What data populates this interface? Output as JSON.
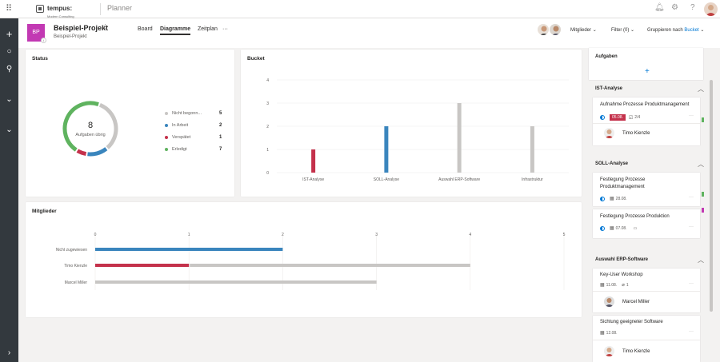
{
  "topbar": {
    "app_name": "Planner",
    "logo_brand": "tempus:",
    "logo_tagline": "Modern Consulting"
  },
  "header": {
    "project_initials": "BP",
    "project_title": "Beispiel-Projekt",
    "project_subtitle": "Beispiel-Projekt",
    "tabs": [
      {
        "label": "Board"
      },
      {
        "label": "Diagramme"
      },
      {
        "label": "Zeitplan"
      }
    ],
    "more": "···",
    "members": "Mitglieder",
    "filter": "Filter (0)",
    "group_prefix": "Gruppieren nach",
    "group_value": "Bucket"
  },
  "status": {
    "title": "Status",
    "center_number": "8",
    "center_label": "Aufgaben übrig",
    "legend": [
      {
        "label": "Nicht begonn...",
        "count": "5",
        "color": "#c8c6c4"
      },
      {
        "label": "In Arbeit",
        "count": "2",
        "color": "#3a85bd"
      },
      {
        "label": "Verspätet",
        "count": "1",
        "color": "#c4314b"
      },
      {
        "label": "Erledigt",
        "count": "7",
        "color": "#5fb35f"
      }
    ]
  },
  "bucket_chart": {
    "title": "Bucket"
  },
  "members_chart": {
    "title": "Mitglieder"
  },
  "chart_data": [
    {
      "type": "bar",
      "title": "Bucket",
      "categories": [
        "IST-Analyse",
        "SOLL-Analyse",
        "Auswahl ERP-Software",
        "Infrastruktur"
      ],
      "series": [
        {
          "values": [
            1,
            0,
            0,
            0
          ],
          "color": "#c4314b"
        },
        {
          "values": [
            0,
            2,
            0,
            0
          ],
          "color": "#3a85bd"
        },
        {
          "values": [
            0,
            0,
            3,
            2
          ],
          "color": "#c8c6c4"
        }
      ],
      "yticks": [
        "0",
        "1",
        "2",
        "3",
        "4"
      ],
      "ylim": [
        0,
        4
      ]
    },
    {
      "type": "bar",
      "orientation": "horizontal",
      "title": "Mitglieder",
      "categories": [
        "Nicht zugewiesen",
        "Timo Kienzle",
        "Marcel Miller"
      ],
      "series": [
        {
          "values": [
            2,
            0,
            0
          ],
          "color": "#3a85bd"
        },
        {
          "values": [
            0,
            1,
            0
          ],
          "color": "#c4314b"
        },
        {
          "values": [
            0,
            3,
            3
          ],
          "color": "#c8c6c4"
        }
      ],
      "xticks": [
        "0",
        "1",
        "2",
        "3",
        "4",
        "5"
      ],
      "xlim": [
        0,
        5
      ]
    }
  ],
  "tasks_panel": {
    "title": "Aufgaben",
    "add": "+",
    "sections": [
      {
        "name": "IST-Analyse",
        "tasks": [
          {
            "name": "Aufnahme Prozesse Produktmanagement",
            "due": "05.08.",
            "check": "2/4",
            "assignee": "Timo Kienzle"
          }
        ]
      },
      {
        "name": "SOLL-Analyse",
        "tasks": [
          {
            "name": "Festlegung Prozesse Produktmanagement",
            "due": "28.08."
          },
          {
            "name": "Festlegung Prozesse Produktion",
            "due": "07.08."
          }
        ]
      },
      {
        "name": "Auswahl ERP-Software",
        "tasks": [
          {
            "name": "Key-User Workshop",
            "due": "11.08.",
            "attach": "1",
            "assignee": "Marcel Miller"
          },
          {
            "name": "Sichtung geeigneter Software",
            "due": "12.08.",
            "assignee": "Timo Kienzle"
          }
        ]
      }
    ]
  }
}
